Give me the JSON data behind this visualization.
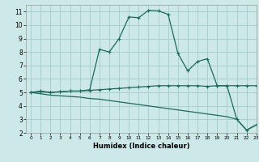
{
  "xlabel": "Humidex (Indice chaleur)",
  "background_color": "#cce8e8",
  "grid_color": "#aacfcf",
  "line_color": "#1a6b5a",
  "line1_x": [
    0,
    1,
    2,
    3,
    4,
    5,
    6,
    7,
    8,
    9,
    10,
    11,
    12,
    13,
    14,
    15,
    16,
    17,
    18,
    19,
    20,
    21,
    22,
    23
  ],
  "line1_y": [
    5.0,
    5.1,
    5.0,
    5.05,
    5.1,
    5.1,
    5.2,
    8.2,
    8.0,
    9.0,
    10.6,
    10.55,
    11.1,
    11.05,
    10.8,
    7.9,
    6.6,
    7.3,
    7.5,
    5.5,
    5.5,
    3.0,
    2.2,
    2.6
  ],
  "line2_x": [
    0,
    1,
    2,
    3,
    4,
    5,
    6,
    7,
    8,
    9,
    10,
    11,
    12,
    13,
    14,
    15,
    16,
    17,
    18,
    19,
    20,
    21,
    22,
    23
  ],
  "line2_y": [
    5.0,
    5.05,
    5.0,
    5.05,
    5.1,
    5.1,
    5.15,
    5.2,
    5.25,
    5.3,
    5.35,
    5.4,
    5.45,
    5.5,
    5.5,
    5.5,
    5.5,
    5.5,
    5.45,
    5.5,
    5.5,
    5.5,
    5.5,
    5.5
  ],
  "line3_x": [
    0,
    1,
    2,
    3,
    4,
    5,
    6,
    7,
    8,
    9,
    10,
    11,
    12,
    13,
    14,
    15,
    16,
    17,
    18,
    19,
    20,
    21,
    22,
    23
  ],
  "line3_y": [
    5.0,
    4.9,
    4.8,
    4.75,
    4.7,
    4.65,
    4.55,
    4.5,
    4.4,
    4.3,
    4.2,
    4.1,
    4.0,
    3.9,
    3.8,
    3.7,
    3.6,
    3.5,
    3.4,
    3.3,
    3.2,
    3.0,
    2.2,
    2.6
  ],
  "xlim": [
    -0.5,
    23
  ],
  "ylim": [
    2,
    11.5
  ],
  "xticks": [
    0,
    1,
    2,
    3,
    4,
    5,
    6,
    7,
    8,
    9,
    10,
    11,
    12,
    13,
    14,
    15,
    16,
    17,
    18,
    19,
    20,
    21,
    22,
    23
  ],
  "yticks": [
    2,
    3,
    4,
    5,
    6,
    7,
    8,
    9,
    10,
    11
  ]
}
